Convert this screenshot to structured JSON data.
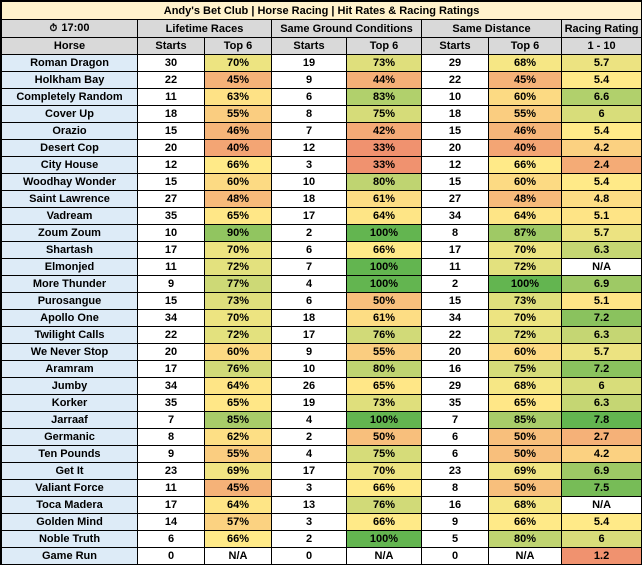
{
  "title": "Andy's Bet Club | Horse Racing | Hit Rates & Racing Ratings",
  "time": "17:00",
  "icons": {
    "clock": "stopwatch-icon"
  },
  "groups": [
    "Lifetime Races",
    "Same Ground Conditions",
    "Same Distance",
    "Racing Rating"
  ],
  "subheaders": [
    "Horse",
    "Starts",
    "Top 6",
    "Starts",
    "Top 6",
    "Starts",
    "Top 6",
    "1 - 10"
  ],
  "rows": [
    [
      "Roman Dragon",
      "30",
      "70%",
      "19",
      "73%",
      "29",
      "68%",
      "5.7"
    ],
    [
      "Holkham Bay",
      "22",
      "45%",
      "9",
      "44%",
      "22",
      "45%",
      "5.4"
    ],
    [
      "Completely Random",
      "11",
      "63%",
      "6",
      "83%",
      "10",
      "60%",
      "6.6"
    ],
    [
      "Cover Up",
      "18",
      "55%",
      "8",
      "75%",
      "18",
      "55%",
      "6"
    ],
    [
      "Orazio",
      "15",
      "46%",
      "7",
      "42%",
      "15",
      "46%",
      "5.4"
    ],
    [
      "Desert Cop",
      "20",
      "40%",
      "12",
      "33%",
      "20",
      "40%",
      "4.2"
    ],
    [
      "City House",
      "12",
      "66%",
      "3",
      "33%",
      "12",
      "66%",
      "2.4"
    ],
    [
      "Woodhay Wonder",
      "15",
      "60%",
      "10",
      "80%",
      "15",
      "60%",
      "5.4"
    ],
    [
      "Saint Lawrence",
      "27",
      "48%",
      "18",
      "61%",
      "27",
      "48%",
      "4.8"
    ],
    [
      "Vadream",
      "35",
      "65%",
      "17",
      "64%",
      "34",
      "64%",
      "5.1"
    ],
    [
      "Zoum Zoum",
      "10",
      "90%",
      "2",
      "100%",
      "8",
      "87%",
      "5.7"
    ],
    [
      "Shartash",
      "17",
      "70%",
      "6",
      "66%",
      "17",
      "70%",
      "6.3"
    ],
    [
      "Elmonjed",
      "11",
      "72%",
      "7",
      "100%",
      "11",
      "72%",
      "N/A"
    ],
    [
      "More Thunder",
      "9",
      "77%",
      "4",
      "100%",
      "2",
      "100%",
      "6.9"
    ],
    [
      "Purosangue",
      "15",
      "73%",
      "6",
      "50%",
      "15",
      "73%",
      "5.1"
    ],
    [
      "Apollo One",
      "34",
      "70%",
      "18",
      "61%",
      "34",
      "70%",
      "7.2"
    ],
    [
      "Twilight Calls",
      "22",
      "72%",
      "17",
      "76%",
      "22",
      "72%",
      "6.3"
    ],
    [
      "We Never Stop",
      "20",
      "60%",
      "9",
      "55%",
      "20",
      "60%",
      "5.7"
    ],
    [
      "Aramram",
      "17",
      "76%",
      "10",
      "80%",
      "16",
      "75%",
      "7.2"
    ],
    [
      "Jumby",
      "34",
      "64%",
      "26",
      "65%",
      "29",
      "68%",
      "6"
    ],
    [
      "Korker",
      "35",
      "65%",
      "19",
      "73%",
      "35",
      "65%",
      "6.3"
    ],
    [
      "Jarraaf",
      "7",
      "85%",
      "4",
      "100%",
      "7",
      "85%",
      "7.8"
    ],
    [
      "Germanic",
      "8",
      "62%",
      "2",
      "50%",
      "6",
      "50%",
      "2.7"
    ],
    [
      "Ten Pounds",
      "9",
      "55%",
      "4",
      "75%",
      "6",
      "50%",
      "4.2"
    ],
    [
      "Get It",
      "23",
      "69%",
      "17",
      "70%",
      "23",
      "69%",
      "6.9"
    ],
    [
      "Valiant Force",
      "11",
      "45%",
      "3",
      "66%",
      "8",
      "50%",
      "7.5"
    ],
    [
      "Toca Madera",
      "17",
      "64%",
      "13",
      "76%",
      "16",
      "68%",
      "N/A"
    ],
    [
      "Golden Mind",
      "14",
      "57%",
      "3",
      "66%",
      "9",
      "66%",
      "5.4"
    ],
    [
      "Noble Truth",
      "6",
      "66%",
      "2",
      "100%",
      "5",
      "80%",
      "6"
    ],
    [
      "Game Run",
      "0",
      "N/A",
      "0",
      "N/A",
      "0",
      "N/A",
      "1.2"
    ]
  ]
}
